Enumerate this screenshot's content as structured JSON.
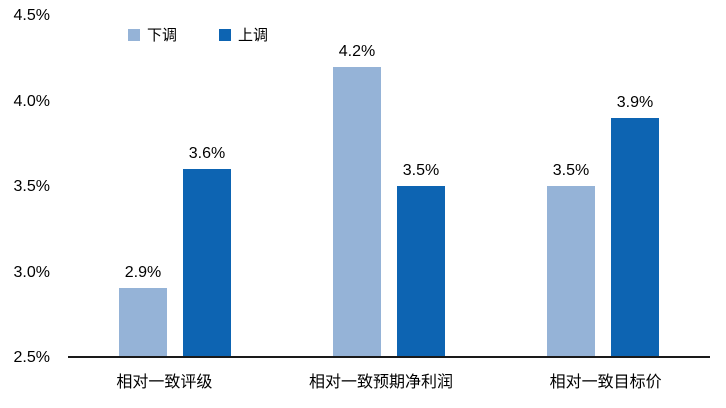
{
  "chart_data": {
    "type": "bar",
    "title": "",
    "categories": [
      "相对一致评级",
      "相对一致预期净利润",
      "相对一致目标价"
    ],
    "series": [
      {
        "name": "下调",
        "color": "#95B3D7",
        "values": [
          2.9,
          4.2,
          3.5
        ],
        "labels": [
          "2.9%",
          "4.2%",
          "3.5%"
        ]
      },
      {
        "name": "上调",
        "color": "#0D64B2",
        "values": [
          3.6,
          3.5,
          3.9
        ],
        "labels": [
          "3.6%",
          "3.5%",
          "3.9%"
        ]
      }
    ],
    "ylim": [
      2.5,
      4.5
    ],
    "yticks": [
      {
        "value": 4.5,
        "label": "4.5%"
      },
      {
        "value": 4.0,
        "label": "4.0%"
      },
      {
        "value": 3.5,
        "label": "3.5%"
      },
      {
        "value": 3.0,
        "label": "3.0%"
      },
      {
        "value": 2.5,
        "label": "2.5%"
      }
    ],
    "grid": false,
    "legend_position": "top-left",
    "axis_line_color": "#1a1a1a"
  }
}
